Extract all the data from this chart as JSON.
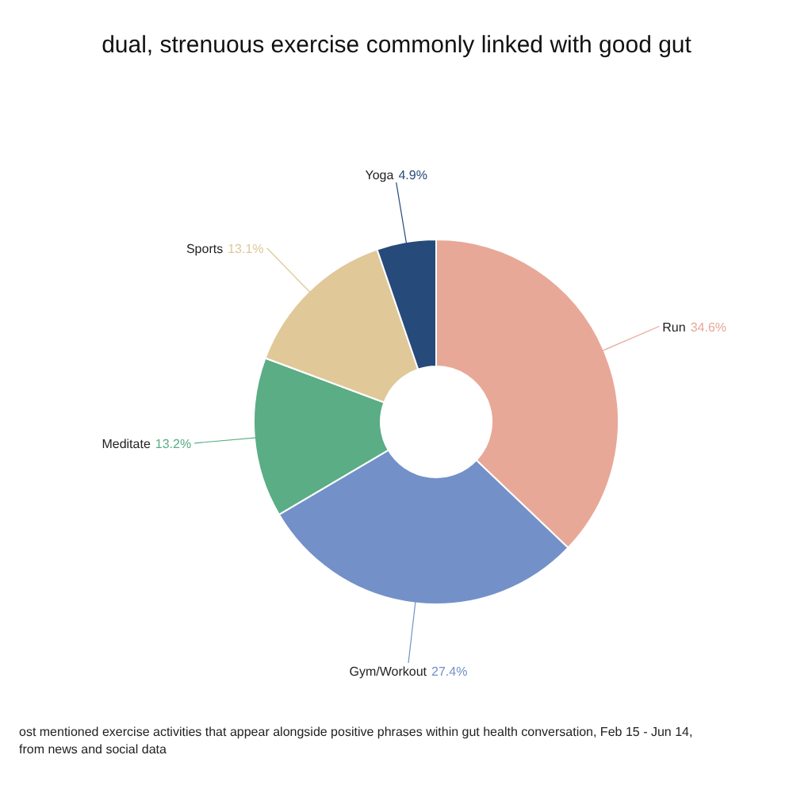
{
  "chart_data": {
    "type": "donut",
    "title": "dual, strenuous exercise commonly linked with good gut",
    "categories": [
      "Run",
      "Gym/Workout",
      "Meditate",
      "Sports",
      "Yoga"
    ],
    "values": [
      34.6,
      27.4,
      13.2,
      13.1,
      4.9
    ],
    "value_labels": [
      "34.6%",
      "27.4%",
      "13.2%",
      "13.1%",
      "4.9%"
    ],
    "colors": [
      "#e8a898",
      "#7391c8",
      "#5aad84",
      "#e0c898",
      "#264a7a"
    ],
    "legend": false,
    "annotations": [
      "ost mentioned exercise activities that appear alongside positive phrases within gut health conversation, Feb 15 - Jun 14,",
      "from news and social data"
    ]
  }
}
